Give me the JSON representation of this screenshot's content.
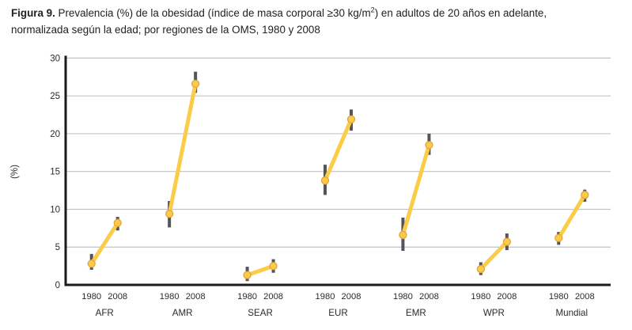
{
  "title": {
    "label": "Figura 9.",
    "line1_pre_sup": " Prevalencia (%) de la obesidad (índice de masa corporal ≥30 kg/m",
    "sup": "2",
    "line1_post_sup": ") en adultos de 20 años en adelante,",
    "line2": "normalizada según la edad; por regiones de la OMS, 1980 y 2008"
  },
  "chart_data": {
    "type": "line",
    "ylabel": "(%)",
    "ylim": [
      0,
      30
    ],
    "yticks": [
      0,
      5,
      10,
      15,
      20,
      25,
      30
    ],
    "x_tick_labels": [
      "1980",
      "2008"
    ],
    "grid": "horizontal",
    "legend": "none",
    "groups": [
      {
        "region": "AFR",
        "points": [
          {
            "year": "1980",
            "value": 2.8,
            "ci": [
              2.0,
              4.1
            ]
          },
          {
            "year": "2008",
            "value": 8.2,
            "ci": [
              7.2,
              9.0
            ]
          }
        ]
      },
      {
        "region": "AMR",
        "points": [
          {
            "year": "1980",
            "value": 9.4,
            "ci": [
              7.6,
              11.1
            ]
          },
          {
            "year": "2008",
            "value": 26.6,
            "ci": [
              25.4,
              28.2
            ]
          }
        ]
      },
      {
        "region": "SEAR",
        "points": [
          {
            "year": "1980",
            "value": 1.3,
            "ci": [
              0.5,
              2.4
            ]
          },
          {
            "year": "2008",
            "value": 2.5,
            "ci": [
              1.6,
              3.4
            ]
          }
        ]
      },
      {
        "region": "EUR",
        "points": [
          {
            "year": "1980",
            "value": 13.8,
            "ci": [
              11.9,
              15.9
            ]
          },
          {
            "year": "2008",
            "value": 21.9,
            "ci": [
              20.4,
              23.2
            ]
          }
        ]
      },
      {
        "region": "EMR",
        "points": [
          {
            "year": "1980",
            "value": 6.6,
            "ci": [
              4.5,
              8.9
            ]
          },
          {
            "year": "2008",
            "value": 18.5,
            "ci": [
              17.2,
              20.0
            ]
          }
        ]
      },
      {
        "region": "WPR",
        "points": [
          {
            "year": "1980",
            "value": 2.1,
            "ci": [
              1.3,
              3.0
            ]
          },
          {
            "year": "2008",
            "value": 5.7,
            "ci": [
              4.6,
              6.8
            ]
          }
        ]
      },
      {
        "region": "Mundial",
        "points": [
          {
            "year": "1980",
            "value": 6.2,
            "ci": [
              5.3,
              7.0
            ]
          },
          {
            "year": "2008",
            "value": 11.9,
            "ci": [
              11.0,
              12.6
            ]
          }
        ]
      }
    ],
    "colors": {
      "line": "#FACC48",
      "marker_fill": "#FACC48",
      "marker_stroke": "#E5A33C",
      "error_bar": "#54555A",
      "gridline": "#C2C3C5",
      "axis": "#1A1A1A",
      "text": "#2B2B2B"
    }
  }
}
